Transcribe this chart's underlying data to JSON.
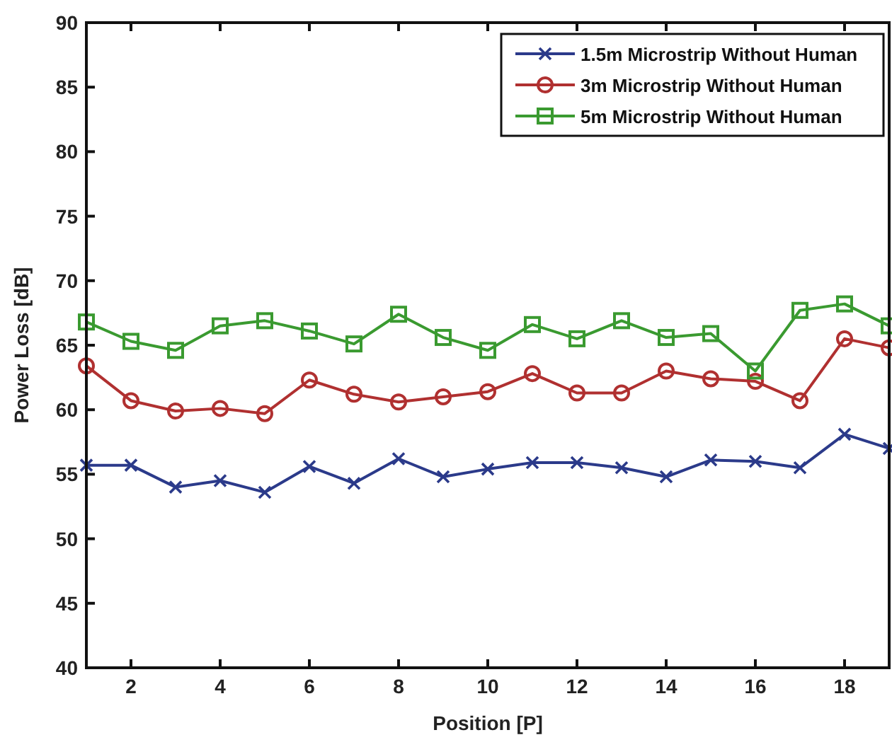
{
  "chart_data": {
    "type": "line",
    "xlabel": "Position [P]",
    "ylabel": "Power Loss [dB]",
    "x": [
      1,
      2,
      3,
      4,
      5,
      6,
      7,
      8,
      9,
      10,
      11,
      12,
      13,
      14,
      15,
      16,
      17,
      18,
      19
    ],
    "series": [
      {
        "name": "1.5m Microstrip Without Human",
        "color": "#2b3a8a",
        "marker": "cross",
        "values": [
          55.7,
          55.7,
          54.0,
          54.5,
          53.6,
          55.6,
          54.3,
          56.2,
          54.8,
          55.4,
          55.9,
          55.9,
          55.5,
          54.8,
          56.1,
          56.0,
          55.5,
          58.1,
          57.0
        ]
      },
      {
        "name": "3m Microstrip Without Human",
        "color": "#b03030",
        "marker": "circle",
        "values": [
          63.4,
          60.7,
          59.9,
          60.1,
          59.7,
          62.3,
          61.2,
          60.6,
          61.0,
          61.4,
          62.8,
          61.3,
          61.3,
          63.0,
          62.4,
          62.2,
          60.7,
          65.5,
          64.8
        ]
      },
      {
        "name": "5m Microstrip Without Human",
        "color": "#3a9a30",
        "marker": "square",
        "values": [
          66.8,
          65.3,
          64.6,
          66.5,
          66.9,
          66.1,
          65.1,
          67.4,
          65.6,
          64.6,
          66.6,
          65.5,
          66.9,
          65.6,
          65.9,
          63.0,
          67.7,
          68.2,
          66.5
        ]
      }
    ],
    "xlim": [
      1,
      19
    ],
    "xticks": [
      2,
      4,
      6,
      8,
      10,
      12,
      14,
      16,
      18
    ],
    "ylim": [
      40,
      90
    ],
    "yticks": [
      40,
      45,
      50,
      55,
      60,
      65,
      70,
      75,
      80,
      85,
      90
    ],
    "legend": "top right",
    "grid": false,
    "line_style": "solid"
  }
}
